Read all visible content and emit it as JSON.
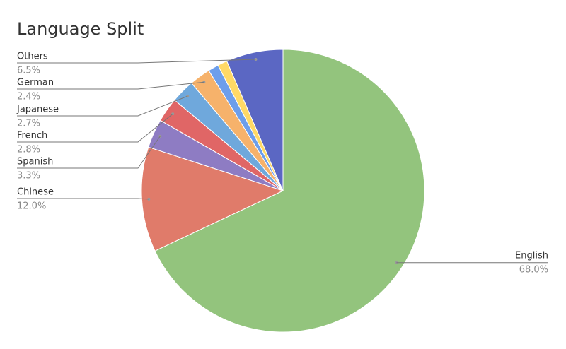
{
  "chart_data": {
    "type": "pie",
    "title": "Language Split",
    "categories": [
      "English",
      "Chinese",
      "Spanish",
      "French",
      "Japanese",
      "German",
      null,
      null,
      "Others"
    ],
    "values": [
      68.0,
      12.0,
      3.3,
      2.8,
      2.7,
      2.4,
      1.2,
      1.1,
      6.5
    ],
    "value_labels": [
      "68.0%",
      "12.0%",
      "3.3%",
      "2.8%",
      "2.7%",
      "2.4%",
      null,
      null,
      "6.5%"
    ],
    "colors": [
      "#93c47d",
      "#e07b6a",
      "#8e7cc3",
      "#e06666",
      "#6fa8dc",
      "#f6b26b",
      "#6d9eeb",
      "#ffd966",
      "#5b67c3"
    ]
  }
}
